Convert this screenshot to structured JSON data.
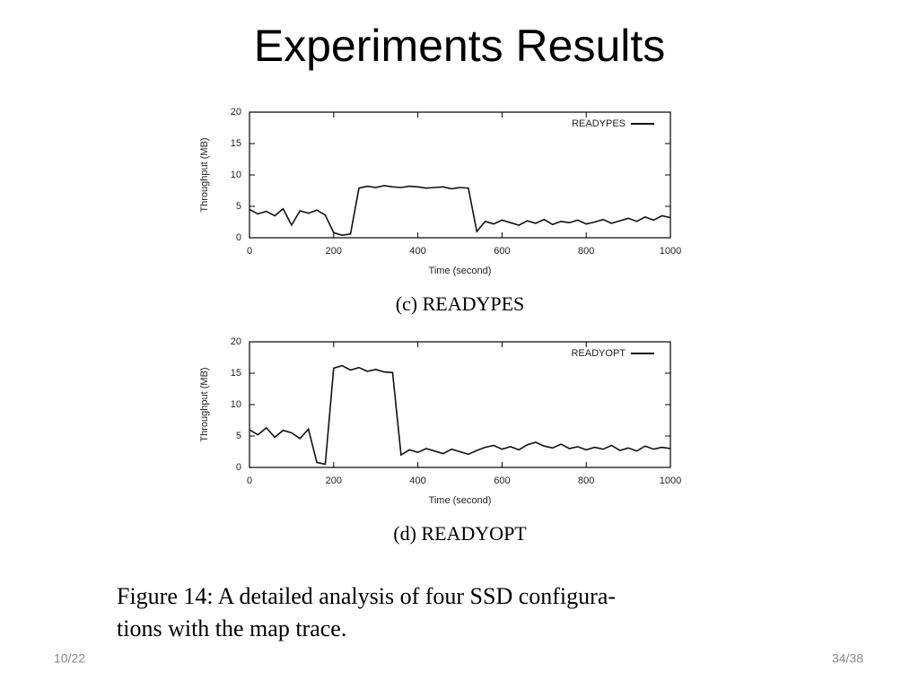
{
  "slide_title": "Experiments Results",
  "chart_data": [
    {
      "type": "line",
      "caption": "(c) READYPES",
      "xlabel": "Time (second)",
      "ylabel": "Throughput (MB)",
      "xlim": [
        0,
        1000
      ],
      "ylim": [
        0,
        20
      ],
      "xticks": [
        0,
        200,
        400,
        600,
        800,
        1000
      ],
      "yticks": [
        0,
        5,
        10,
        15,
        20
      ],
      "legend": "upper right",
      "x": [
        0,
        20,
        40,
        60,
        80,
        100,
        120,
        140,
        160,
        180,
        200,
        220,
        240,
        260,
        280,
        300,
        320,
        340,
        360,
        380,
        400,
        420,
        440,
        460,
        480,
        500,
        520,
        540,
        560,
        580,
        600,
        620,
        640,
        660,
        680,
        700,
        720,
        740,
        760,
        780,
        800,
        820,
        840,
        860,
        880,
        900,
        920,
        940,
        960,
        980,
        1000
      ],
      "series": [
        {
          "name": "READYPES",
          "color": "#111111",
          "values": [
            4.5,
            3.8,
            4.2,
            3.5,
            4.6,
            2.0,
            4.3,
            3.9,
            4.4,
            3.6,
            0.8,
            0.4,
            0.6,
            7.9,
            8.2,
            8.0,
            8.3,
            8.1,
            8.0,
            8.2,
            8.1,
            7.9,
            8.0,
            8.1,
            7.8,
            8.0,
            7.9,
            1.0,
            2.6,
            2.2,
            2.8,
            2.4,
            2.0,
            2.7,
            2.3,
            2.9,
            2.1,
            2.6,
            2.4,
            2.8,
            2.2,
            2.5,
            2.9,
            2.3,
            2.7,
            3.1,
            2.6,
            3.3,
            2.8,
            3.5,
            3.2
          ]
        }
      ]
    },
    {
      "type": "line",
      "caption": "(d) READYOPT",
      "xlabel": "Time (second)",
      "ylabel": "Throughput (MB)",
      "xlim": [
        0,
        1000
      ],
      "ylim": [
        0,
        20
      ],
      "xticks": [
        0,
        200,
        400,
        600,
        800,
        1000
      ],
      "yticks": [
        0,
        5,
        10,
        15,
        20
      ],
      "legend": "upper right",
      "x": [
        0,
        20,
        40,
        60,
        80,
        100,
        120,
        140,
        160,
        180,
        200,
        220,
        240,
        260,
        280,
        300,
        320,
        340,
        360,
        380,
        400,
        420,
        440,
        460,
        480,
        500,
        520,
        540,
        560,
        580,
        600,
        620,
        640,
        660,
        680,
        700,
        720,
        740,
        760,
        780,
        800,
        820,
        840,
        860,
        880,
        900,
        920,
        940,
        960,
        980,
        1000
      ],
      "series": [
        {
          "name": "READYOPT",
          "color": "#111111",
          "values": [
            6.0,
            5.2,
            6.3,
            4.8,
            5.9,
            5.5,
            4.6,
            6.1,
            0.8,
            0.5,
            15.8,
            16.2,
            15.5,
            15.9,
            15.3,
            15.6,
            15.2,
            15.1,
            2.0,
            2.8,
            2.4,
            3.0,
            2.6,
            2.2,
            2.9,
            2.5,
            2.1,
            2.7,
            3.2,
            3.5,
            2.9,
            3.3,
            2.8,
            3.6,
            4.0,
            3.4,
            3.1,
            3.7,
            3.0,
            3.3,
            2.8,
            3.2,
            2.9,
            3.5,
            2.7,
            3.1,
            2.6,
            3.4,
            2.9,
            3.2,
            3.0
          ]
        }
      ]
    }
  ],
  "figure_caption": [
    "Figure 14:  A detailed analysis of four SSD configura-",
    "tions with the map trace."
  ],
  "footer": {
    "date": "10/22",
    "page": "34/38"
  }
}
